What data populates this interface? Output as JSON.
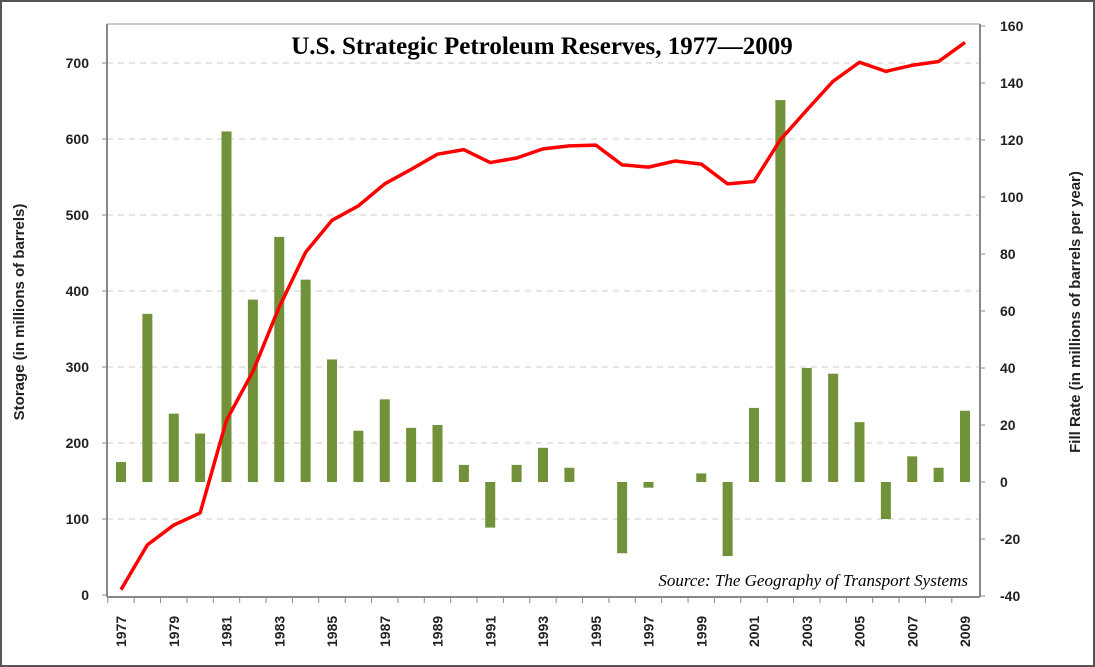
{
  "chart_data": {
    "type": "bar+line",
    "title": "U.S. Strategic Petroleum Reserves, 1977—2009",
    "source": "Source: The Geography of Transport Systems",
    "ylabel_left": "Storage (in millions of barrels)",
    "ylabel_right": "Fill Rate (in millions of barrels per year)",
    "ylim_left": [
      0,
      750
    ],
    "ylim_right": [
      -40,
      160
    ],
    "yticks_left": [
      0,
      100,
      200,
      300,
      400,
      500,
      600,
      700
    ],
    "yticks_right": [
      -40,
      -20,
      0,
      20,
      40,
      60,
      80,
      100,
      120,
      140,
      160
    ],
    "xtick_labels": [
      "1977",
      "1979",
      "1981",
      "1983",
      "1985",
      "1987",
      "1989",
      "1991",
      "1993",
      "1995",
      "1997",
      "1999",
      "2001",
      "2003",
      "2005",
      "2007",
      "2009"
    ],
    "grid": true,
    "colors": {
      "bars": "#71923a",
      "line": "#ff0000"
    },
    "x": [
      1977,
      1978,
      1979,
      1980,
      1981,
      1982,
      1983,
      1984,
      1985,
      1986,
      1987,
      1988,
      1989,
      1990,
      1991,
      1992,
      1993,
      1994,
      1995,
      1996,
      1997,
      1998,
      1999,
      2000,
      2001,
      2002,
      2003,
      2004,
      2005,
      2006,
      2007,
      2008,
      2009
    ],
    "series": [
      {
        "type": "bar",
        "axis": "right",
        "values": [
          7,
          59,
          24,
          17,
          123,
          64,
          86,
          71,
          43,
          18,
          29,
          19,
          20,
          6,
          -16,
          6,
          12,
          5,
          0,
          -25,
          -2,
          0,
          3,
          -26,
          26,
          134,
          40,
          38,
          21,
          -13,
          9,
          5,
          25
        ]
      },
      {
        "type": "line",
        "axis": "left",
        "values": [
          7,
          66,
          92,
          108,
          230,
          294,
          379,
          451,
          493,
          512,
          541,
          560,
          580,
          586,
          569,
          575,
          587,
          591,
          592,
          566,
          563,
          571,
          567,
          541,
          544,
          599,
          638,
          676,
          701,
          689,
          697,
          702,
          727
        ]
      }
    ]
  }
}
